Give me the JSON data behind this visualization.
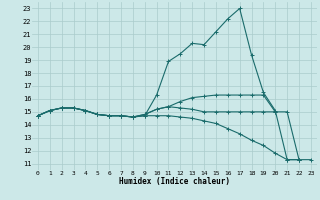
{
  "title": "",
  "xlabel": "Humidex (Indice chaleur)",
  "bg_color": "#cce8e8",
  "grid_color": "#aacccc",
  "line_color": "#1a6b6b",
  "xlim": [
    -0.5,
    23.5
  ],
  "ylim": [
    10.5,
    23.5
  ],
  "yticks": [
    11,
    12,
    13,
    14,
    15,
    16,
    17,
    18,
    19,
    20,
    21,
    22,
    23
  ],
  "xticks": [
    0,
    1,
    2,
    3,
    4,
    5,
    6,
    7,
    8,
    9,
    10,
    11,
    12,
    13,
    14,
    15,
    16,
    17,
    18,
    19,
    20,
    21,
    22,
    23
  ],
  "lines": [
    {
      "x": [
        0,
        1,
        2,
        3,
        4,
        5,
        6,
        7,
        8,
        9,
        10,
        11,
        12,
        13,
        14,
        15,
        16,
        17,
        18,
        19,
        20,
        21,
        22
      ],
      "y": [
        14.7,
        15.1,
        15.3,
        15.3,
        15.1,
        14.8,
        14.7,
        14.7,
        14.6,
        14.7,
        16.3,
        18.9,
        19.5,
        20.3,
        20.2,
        21.2,
        22.2,
        23.0,
        19.4,
        16.5,
        15.1,
        11.3,
        11.3
      ]
    },
    {
      "x": [
        0,
        1,
        2,
        3,
        4,
        5,
        6,
        7,
        8,
        9,
        10,
        11,
        12,
        13,
        14,
        15,
        16,
        17,
        18,
        19,
        20
      ],
      "y": [
        14.7,
        15.1,
        15.3,
        15.3,
        15.1,
        14.8,
        14.7,
        14.7,
        14.6,
        14.8,
        15.2,
        15.4,
        15.8,
        16.1,
        16.2,
        16.3,
        16.3,
        16.3,
        16.3,
        16.3,
        15.0
      ]
    },
    {
      "x": [
        0,
        1,
        2,
        3,
        4,
        5,
        6,
        7,
        8,
        9,
        10,
        11,
        12,
        13,
        14,
        15,
        16,
        17,
        18,
        19,
        20,
        21,
        22,
        23
      ],
      "y": [
        14.7,
        15.1,
        15.3,
        15.3,
        15.1,
        14.8,
        14.7,
        14.7,
        14.6,
        14.8,
        15.2,
        15.4,
        15.3,
        15.2,
        15.0,
        15.0,
        15.0,
        15.0,
        15.0,
        15.0,
        15.0,
        15.0,
        11.3,
        11.3
      ]
    },
    {
      "x": [
        0,
        1,
        2,
        3,
        4,
        5,
        6,
        7,
        8,
        9,
        10,
        11,
        12,
        13,
        14,
        15,
        16,
        17,
        18,
        19,
        20,
        21,
        22
      ],
      "y": [
        14.7,
        15.1,
        15.3,
        15.3,
        15.1,
        14.8,
        14.7,
        14.7,
        14.6,
        14.7,
        14.7,
        14.7,
        14.6,
        14.5,
        14.3,
        14.1,
        13.7,
        13.3,
        12.8,
        12.4,
        11.8,
        11.3,
        11.3
      ]
    }
  ]
}
